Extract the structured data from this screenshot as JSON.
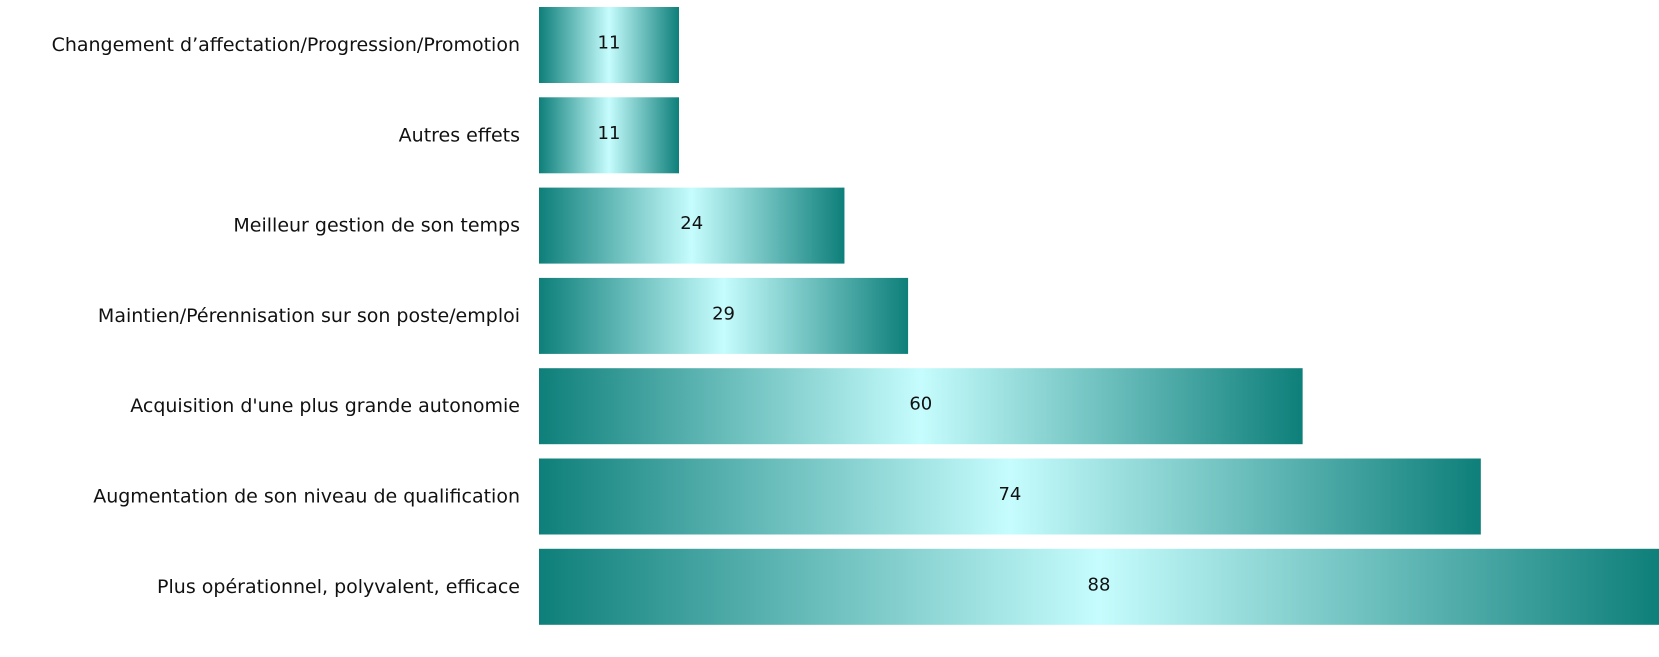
{
  "chart_data": {
    "type": "bar",
    "orientation": "horizontal",
    "categories": [
      "Changement d’affectation/Progression/Promotion",
      "Autres effets",
      "Meilleur gestion de son temps",
      "Maintien/Pérennisation sur son poste/emploi",
      "Acquisition d'une plus grande autonomie",
      "Augmentation de son niveau de qualification",
      "Plus opérationnel, polyvalent, efficace"
    ],
    "values": [
      11,
      11,
      24,
      29,
      60,
      74,
      88
    ],
    "data_labels": [
      "11",
      "11",
      "24",
      "29",
      "60",
      "74",
      "88"
    ],
    "xlim": [
      0,
      88
    ],
    "grid": false,
    "legend": "none",
    "bar_fill": "horizontal-gradient",
    "colors": {
      "bar_edge": "#0e7f7a",
      "bar_center": "#c6fcfd",
      "text": "#111111",
      "background": "#ffffff"
    }
  }
}
